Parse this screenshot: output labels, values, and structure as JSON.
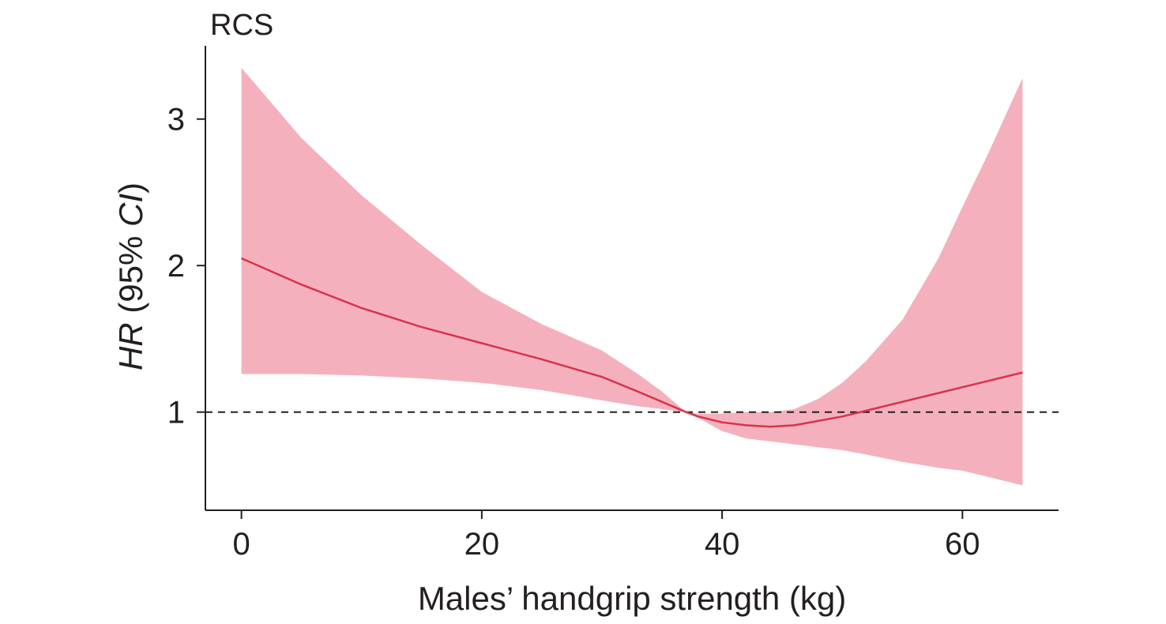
{
  "chart_data": {
    "type": "line",
    "title": "RCS",
    "xlabel": "Males’ handgrip strength (kg)",
    "ylabel": {
      "italic": "HR",
      "prefix": " (95% ",
      "italic2": "CI",
      "suffix": ")"
    },
    "xlim": [
      -3,
      68
    ],
    "ylim": [
      0.33,
      3.5
    ],
    "xticks": [
      0,
      20,
      40,
      60
    ],
    "xtick_labels": [
      "0",
      "20",
      "40",
      "60"
    ],
    "yticks": [
      1,
      2,
      3
    ],
    "ytick_labels": [
      "1",
      "2",
      "3"
    ],
    "reference_line": {
      "y": 1,
      "style": "dashed",
      "color": "#231f20"
    },
    "grid": false,
    "colors": {
      "line": "#d9334a",
      "band": "#f4b1bd",
      "axis": "#231f20"
    },
    "series": [
      {
        "x": [
          0,
          5,
          10,
          15,
          20,
          25,
          30,
          33,
          35,
          37,
          38,
          40,
          42,
          44,
          46,
          48,
          50,
          52,
          55,
          58,
          60,
          62,
          65
        ],
        "y": [
          2.05,
          1.87,
          1.71,
          1.58,
          1.47,
          1.36,
          1.24,
          1.14,
          1.07,
          1.0,
          0.97,
          0.93,
          0.91,
          0.9,
          0.91,
          0.94,
          0.97,
          1.01,
          1.07,
          1.13,
          1.17,
          1.21,
          1.27
        ],
        "lower": [
          1.26,
          1.26,
          1.25,
          1.23,
          1.2,
          1.15,
          1.08,
          1.04,
          1.02,
          1.0,
          0.96,
          0.87,
          0.82,
          0.8,
          0.78,
          0.76,
          0.74,
          0.71,
          0.66,
          0.62,
          0.6,
          0.56,
          0.5
        ],
        "upper": [
          3.35,
          2.87,
          2.48,
          2.14,
          1.82,
          1.6,
          1.42,
          1.26,
          1.14,
          1.0,
          0.99,
          0.99,
          1.0,
          1.0,
          1.02,
          1.09,
          1.2,
          1.35,
          1.63,
          2.05,
          2.4,
          2.74,
          3.28
        ]
      }
    ]
  }
}
